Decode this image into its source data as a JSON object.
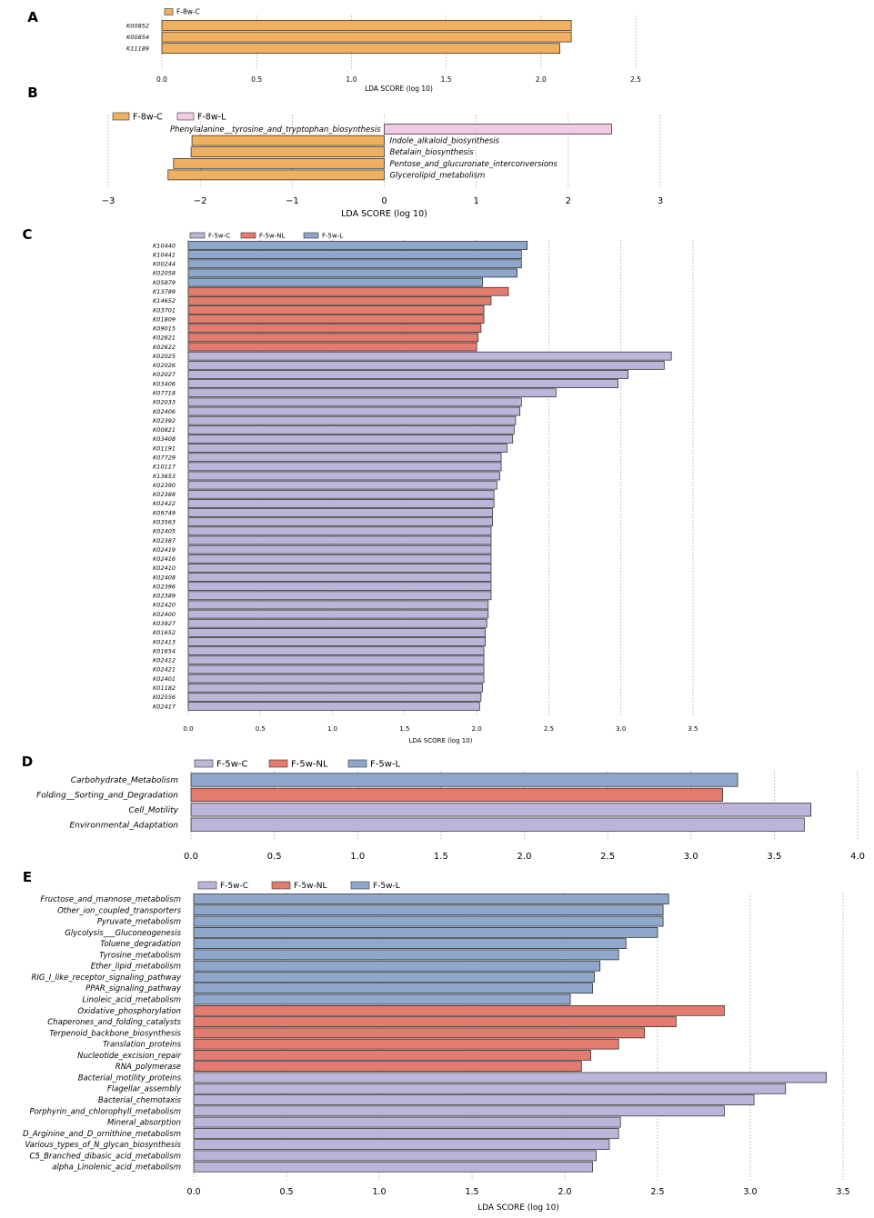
{
  "colors": {
    "F-8w-C": "#f0b061",
    "F-8w-L": "#f2c9e6",
    "F-5w-C": "#bdb5d9",
    "F-5w-NL": "#e37b6e",
    "F-5w-L": "#8fa7cb",
    "grid": "#999999"
  },
  "chart_data": [
    {
      "panel": "A",
      "type": "bar",
      "orientation": "horizontal",
      "label_side": "left",
      "legend": [
        "F-8w-C"
      ],
      "xlabel": "LDA SCORE (log 10)",
      "xlim": [
        0.0,
        2.5
      ],
      "xticks": [
        "0.0",
        "0.5",
        "1.0",
        "1.5",
        "2.0",
        "2.5"
      ],
      "categories": [
        "K00852",
        "K00854",
        "K11189"
      ],
      "values": [
        2.16,
        2.16,
        2.1
      ],
      "groups": [
        "F-8w-C",
        "F-8w-C",
        "F-8w-C"
      ]
    },
    {
      "panel": "B",
      "type": "bar",
      "orientation": "horizontal",
      "label_side": "zero",
      "legend": [
        "F-8w-C",
        "F-8w-L"
      ],
      "xlabel": "LDA SCORE (log 10)",
      "xlim": [
        -3,
        3
      ],
      "xticks": [
        "−3",
        "−2",
        "−1",
        "0",
        "1",
        "2",
        "3"
      ],
      "categories": [
        "Phenylalanine__tyrosine_and_tryptophan_biosynthesis",
        "Indole_alkaloid_biosynthesis",
        "Betalain_biosynthesis",
        "Pentose_and_glucuronate_interconversions",
        "Glycerolipid_metabolism"
      ],
      "values": [
        2.47,
        -2.09,
        -2.1,
        -2.29,
        -2.35
      ],
      "groups": [
        "F-8w-L",
        "F-8w-C",
        "F-8w-C",
        "F-8w-C",
        "F-8w-C"
      ]
    },
    {
      "panel": "C",
      "type": "bar",
      "orientation": "horizontal",
      "label_side": "left",
      "legend": [
        "F-5w-C",
        "F-5w-NL",
        "F-5w-L"
      ],
      "xlabel": "LDA SCORE (log 10)",
      "xlim": [
        0.0,
        3.5
      ],
      "xticks": [
        "0.0",
        "0.5",
        "1.0",
        "1.5",
        "2.0",
        "2.5",
        "3.0",
        "3.5"
      ],
      "categories": [
        "K10440",
        "K10441",
        "K00244",
        "K02058",
        "K05879",
        "K13789",
        "K14652",
        "K03701",
        "K01809",
        "K09015",
        "K02621",
        "K02622",
        "K02025",
        "K02026",
        "K02027",
        "K03406",
        "K07718",
        "K02033",
        "K02406",
        "K02392",
        "K00821",
        "K03408",
        "K01191",
        "K07729",
        "K10117",
        "K13653",
        "K02390",
        "K02388",
        "K02422",
        "K09749",
        "K03563",
        "K02405",
        "K02387",
        "K02419",
        "K02416",
        "K02410",
        "K02408",
        "K02396",
        "K02389",
        "K02420",
        "K02400",
        "K03927",
        "K01652",
        "K02413",
        "K01654",
        "K02412",
        "K02421",
        "K02401",
        "K01182",
        "K02556",
        "K02417"
      ],
      "values": [
        2.35,
        2.31,
        2.31,
        2.28,
        2.04,
        2.22,
        2.1,
        2.05,
        2.05,
        2.03,
        2.01,
        2.0,
        3.35,
        3.3,
        3.05,
        2.98,
        2.55,
        2.31,
        2.3,
        2.27,
        2.26,
        2.25,
        2.21,
        2.17,
        2.17,
        2.16,
        2.14,
        2.12,
        2.12,
        2.11,
        2.11,
        2.1,
        2.1,
        2.1,
        2.1,
        2.1,
        2.1,
        2.1,
        2.1,
        2.08,
        2.08,
        2.07,
        2.06,
        2.06,
        2.05,
        2.05,
        2.05,
        2.05,
        2.04,
        2.03,
        2.02
      ],
      "groups": [
        "F-5w-L",
        "F-5w-L",
        "F-5w-L",
        "F-5w-L",
        "F-5w-L",
        "F-5w-NL",
        "F-5w-NL",
        "F-5w-NL",
        "F-5w-NL",
        "F-5w-NL",
        "F-5w-NL",
        "F-5w-NL",
        "F-5w-C",
        "F-5w-C",
        "F-5w-C",
        "F-5w-C",
        "F-5w-C",
        "F-5w-C",
        "F-5w-C",
        "F-5w-C",
        "F-5w-C",
        "F-5w-C",
        "F-5w-C",
        "F-5w-C",
        "F-5w-C",
        "F-5w-C",
        "F-5w-C",
        "F-5w-C",
        "F-5w-C",
        "F-5w-C",
        "F-5w-C",
        "F-5w-C",
        "F-5w-C",
        "F-5w-C",
        "F-5w-C",
        "F-5w-C",
        "F-5w-C",
        "F-5w-C",
        "F-5w-C",
        "F-5w-C",
        "F-5w-C",
        "F-5w-C",
        "F-5w-C",
        "F-5w-C",
        "F-5w-C",
        "F-5w-C",
        "F-5w-C",
        "F-5w-C",
        "F-5w-C",
        "F-5w-C",
        "F-5w-C"
      ]
    },
    {
      "panel": "D",
      "type": "bar",
      "orientation": "horizontal",
      "label_side": "left",
      "legend": [
        "F-5w-C",
        "F-5w-NL",
        "F-5w-L"
      ],
      "xlabel": "",
      "xlim": [
        0.0,
        4.0
      ],
      "xticks": [
        "0.0",
        "0.5",
        "1.0",
        "1.5",
        "2.0",
        "2.5",
        "3.0",
        "3.5",
        "4.0"
      ],
      "categories": [
        "Carbohydrate_Metabolism",
        "Folding__Sorting_and_Degradation",
        "Cell_Motility",
        "Environmental_Adaptation"
      ],
      "values": [
        3.28,
        3.19,
        3.72,
        3.68
      ],
      "groups": [
        "F-5w-L",
        "F-5w-NL",
        "F-5w-C",
        "F-5w-C"
      ]
    },
    {
      "panel": "E",
      "type": "bar",
      "orientation": "horizontal",
      "label_side": "left",
      "legend": [
        "F-5w-C",
        "F-5w-NL",
        "F-5w-L"
      ],
      "xlabel": "LDA SCORE (log 10)",
      "xlim": [
        0.0,
        3.5
      ],
      "xticks": [
        "0.0",
        "0.5",
        "1.0",
        "1.5",
        "2.0",
        "2.5",
        "3.0",
        "3.5"
      ],
      "categories": [
        "Fructose_and_mannose_metabolism",
        "Other_ion_coupled_transporters",
        "Pyruvate_metabolism",
        "Glycolysis___Gluconeogenesis",
        "Toluene_degradation",
        "Tyrosine_metabolism",
        "Ether_lipid_metabolism",
        "RIG_I_like_receptor_signaling_pathway",
        "PPAR_signaling_pathway",
        "Linoleic_acid_metabolism",
        "Oxidative_phosphorylation",
        "Chaperones_and_folding_catalysts",
        "Terpenoid_backbone_biosynthesis",
        "Translation_proteins",
        "Nucleotide_excision_repair",
        "RNA_polymerase",
        "Bacterial_motility_proteins",
        "Flagellar_assembly",
        "Bacterial_chemotaxis",
        "Porphyrin_and_chlorophyll_metabolism",
        "Mineral_absorption",
        "D_Arginine_and_D_ornithine_metabolism",
        "Various_types_of_N_glycan_biosynthesis",
        "C5_Branched_dibasic_acid_metabolism",
        "alpha_Linolenic_acid_metabolism"
      ],
      "values": [
        2.56,
        2.53,
        2.53,
        2.5,
        2.33,
        2.29,
        2.19,
        2.16,
        2.15,
        2.03,
        2.86,
        2.6,
        2.43,
        2.29,
        2.14,
        2.09,
        3.41,
        3.19,
        3.02,
        2.86,
        2.3,
        2.29,
        2.24,
        2.17,
        2.15
      ],
      "groups": [
        "F-5w-L",
        "F-5w-L",
        "F-5w-L",
        "F-5w-L",
        "F-5w-L",
        "F-5w-L",
        "F-5w-L",
        "F-5w-L",
        "F-5w-L",
        "F-5w-L",
        "F-5w-NL",
        "F-5w-NL",
        "F-5w-NL",
        "F-5w-NL",
        "F-5w-NL",
        "F-5w-NL",
        "F-5w-C",
        "F-5w-C",
        "F-5w-C",
        "F-5w-C",
        "F-5w-C",
        "F-5w-C",
        "F-5w-C",
        "F-5w-C",
        "F-5w-C"
      ]
    }
  ]
}
